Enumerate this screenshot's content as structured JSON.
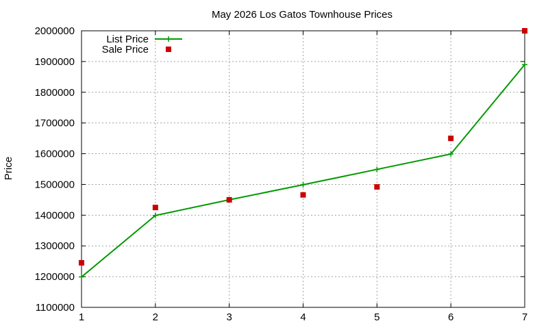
{
  "chart_data": {
    "type": "line",
    "title": "May 2026 Los Gatos Townhouse Prices",
    "xlabel": "",
    "ylabel": "Price",
    "x": [
      1,
      2,
      3,
      4,
      5,
      6,
      7
    ],
    "xlim": [
      1,
      7
    ],
    "ylim": [
      1100000,
      2000000
    ],
    "xticks": [
      "1",
      "2",
      "3",
      "4",
      "5",
      "6",
      "7"
    ],
    "yticks": [
      "1100000",
      "1200000",
      "1300000",
      "1400000",
      "1500000",
      "1600000",
      "1700000",
      "1800000",
      "1900000",
      "2000000"
    ],
    "grid": true,
    "legend_position": "top-left",
    "series": [
      {
        "name": "List Price",
        "kind": "line-with-plus-markers",
        "color": "#009900",
        "values": [
          1199000,
          1399000,
          1450000,
          1499000,
          1549000,
          1599000,
          1890000
        ]
      },
      {
        "name": "Sale Price",
        "kind": "square-markers",
        "color": "#cc0000",
        "values": [
          1245000,
          1425000,
          1450000,
          1466000,
          1492000,
          1650000,
          2000000
        ]
      }
    ]
  }
}
